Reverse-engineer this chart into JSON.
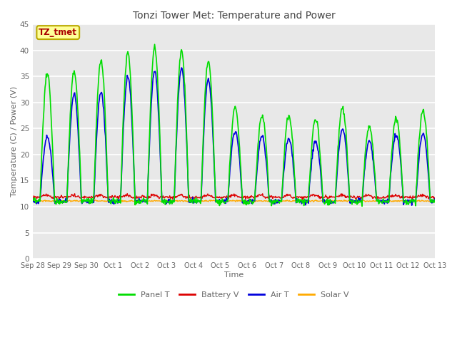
{
  "title": "Tonzi Tower Met: Temperature and Power",
  "xlabel": "Time",
  "ylabel": "Temperature (C) / Power (V)",
  "ylim": [
    0,
    45
  ],
  "yticks": [
    0,
    5,
    10,
    15,
    20,
    25,
    30,
    35,
    40,
    45
  ],
  "x_labels": [
    "Sep 28",
    "Sep 29",
    "Sep 30",
    "Oct 1",
    "Oct 2",
    "Oct 3",
    "Oct 4",
    "Oct 5",
    "Oct 6",
    "Oct 7",
    "Oct 8",
    "Oct 9",
    "Oct 10",
    "Oct 11",
    "Oct 12",
    "Oct 13"
  ],
  "legend_labels": [
    "Panel T",
    "Battery V",
    "Air T",
    "Solar V"
  ],
  "legend_colors": [
    "#00dd00",
    "#dd0000",
    "#0000dd",
    "#ffaa00"
  ],
  "annotation_text": "TZ_tmet",
  "annotation_color": "#aa0000",
  "annotation_bg": "#ffff99",
  "annotation_border": "#bbaa00",
  "plot_bg": "#e8e8e8",
  "grid_color": "#ffffff",
  "title_color": "#444444",
  "axis_label_color": "#666666",
  "tick_label_color": "#666666"
}
